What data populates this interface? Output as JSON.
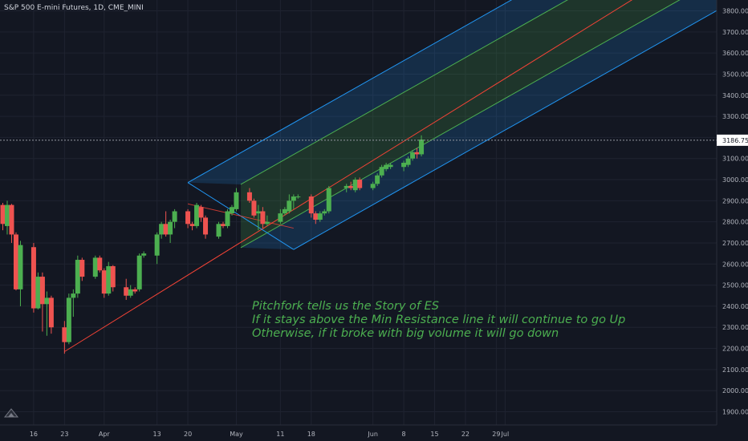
{
  "header": {
    "title": "S&P 500 E-mini Futures, 1D, CME_MINI"
  },
  "annotation": {
    "line1": "Pitchfork tells us the Story of ES",
    "line2": "If it stays above the Min Resistance line it will continue to go Up",
    "line3": "Otherwise, if it broke with big volume it will go down"
  },
  "colors": {
    "background": "#131722",
    "bullish": "#4caf50",
    "bearish": "#ef5350",
    "median_line": "#f44336",
    "inner_band": "#4caf50",
    "outer_band": "#2196f3",
    "axis_text": "#b2b5be"
  },
  "chart_data": {
    "type": "candlestick",
    "symbol": "S&P 500 E-mini Futures",
    "interval": "1D",
    "exchange": "CME_MINI",
    "ylim": [
      1850,
      3850
    ],
    "y_ticks": [
      3800,
      3700,
      3600,
      3500,
      3400,
      3300,
      3200,
      3100,
      3000,
      2900,
      2800,
      2700,
      2600,
      2500,
      2400,
      2300,
      2200,
      2100,
      2000,
      1900
    ],
    "y_tick_labels": [
      "3800.00",
      "3700.00",
      "3600.00",
      "3500.00",
      "3400.00",
      "3300.00",
      "3200.00",
      "3100.00",
      "3000.00",
      "2900.00",
      "2800.00",
      "2700.00",
      "2600.00",
      "2500.00",
      "2400.00",
      "2300.00",
      "2200.00",
      "2100.00",
      "2000.00",
      "1900.00"
    ],
    "x_ticks": [
      {
        "label": "16",
        "date": "2020-03-16"
      },
      {
        "label": "23",
        "date": "2020-03-23"
      },
      {
        "label": "Apr",
        "date": "2020-04-01"
      },
      {
        "label": "13",
        "date": "2020-04-13"
      },
      {
        "label": "20",
        "date": "2020-04-20"
      },
      {
        "label": "May",
        "date": "2020-05-01"
      },
      {
        "label": "11",
        "date": "2020-05-11"
      },
      {
        "label": "18",
        "date": "2020-05-18"
      },
      {
        "label": "Jun",
        "date": "2020-06-01"
      },
      {
        "label": "8",
        "date": "2020-06-08"
      },
      {
        "label": "15",
        "date": "2020-06-15"
      },
      {
        "label": "22",
        "date": "2020-06-22"
      },
      {
        "label": "29",
        "date": "2020-06-29"
      },
      {
        "label": "Jul",
        "date": "2020-07-01"
      }
    ],
    "last_price": 3186.75,
    "last_price_label": "3186.75",
    "candles": [
      {
        "date": "2020-03-09",
        "open": 2880,
        "high": 2890,
        "low": 2760,
        "close": 2790
      },
      {
        "date": "2020-03-10",
        "open": 2780,
        "high": 2900,
        "low": 2740,
        "close": 2880
      },
      {
        "date": "2020-03-11",
        "open": 2880,
        "high": 2885,
        "low": 2700,
        "close": 2740
      },
      {
        "date": "2020-03-12",
        "open": 2740,
        "high": 2750,
        "low": 2475,
        "close": 2480
      },
      {
        "date": "2020-03-13",
        "open": 2480,
        "high": 2710,
        "low": 2400,
        "close": 2690
      },
      {
        "date": "2020-03-16",
        "open": 2680,
        "high": 2700,
        "low": 2370,
        "close": 2390
      },
      {
        "date": "2020-03-17",
        "open": 2390,
        "high": 2560,
        "low": 2385,
        "close": 2540
      },
      {
        "date": "2020-03-18",
        "open": 2540,
        "high": 2560,
        "low": 2280,
        "close": 2410
      },
      {
        "date": "2020-03-19",
        "open": 2410,
        "high": 2470,
        "low": 2260,
        "close": 2440
      },
      {
        "date": "2020-03-20",
        "open": 2440,
        "high": 2450,
        "low": 2270,
        "close": 2300
      },
      {
        "date": "2020-03-23",
        "open": 2300,
        "high": 2330,
        "low": 2175,
        "close": 2230
      },
      {
        "date": "2020-03-24",
        "open": 2230,
        "high": 2460,
        "low": 2220,
        "close": 2440
      },
      {
        "date": "2020-03-25",
        "open": 2440,
        "high": 2480,
        "low": 2350,
        "close": 2460
      },
      {
        "date": "2020-03-26",
        "open": 2460,
        "high": 2640,
        "low": 2440,
        "close": 2620
      },
      {
        "date": "2020-03-27",
        "open": 2620,
        "high": 2630,
        "low": 2520,
        "close": 2540
      },
      {
        "date": "2020-03-30",
        "open": 2540,
        "high": 2640,
        "low": 2530,
        "close": 2630
      },
      {
        "date": "2020-03-31",
        "open": 2630,
        "high": 2640,
        "low": 2560,
        "close": 2570
      },
      {
        "date": "2020-04-01",
        "open": 2570,
        "high": 2580,
        "low": 2440,
        "close": 2460
      },
      {
        "date": "2020-04-02",
        "open": 2460,
        "high": 2610,
        "low": 2450,
        "close": 2590
      },
      {
        "date": "2020-04-03",
        "open": 2590,
        "high": 2595,
        "low": 2470,
        "close": 2490
      },
      {
        "date": "2020-04-06",
        "open": 2490,
        "high": 2530,
        "low": 2430,
        "close": 2450
      },
      {
        "date": "2020-04-07",
        "open": 2450,
        "high": 2500,
        "low": 2440,
        "close": 2480
      },
      {
        "date": "2020-04-08",
        "open": 2480,
        "high": 2490,
        "low": 2460,
        "close": 2470
      },
      {
        "date": "2020-04-09",
        "open": 2480,
        "high": 2650,
        "low": 2470,
        "close": 2640
      },
      {
        "date": "2020-04-10",
        "open": 2640,
        "high": 2660,
        "low": 2630,
        "close": 2650
      },
      {
        "date": "2020-04-13",
        "open": 2640,
        "high": 2750,
        "low": 2600,
        "close": 2740
      },
      {
        "date": "2020-04-14",
        "open": 2740,
        "high": 2800,
        "low": 2720,
        "close": 2790
      },
      {
        "date": "2020-04-15",
        "open": 2790,
        "high": 2850,
        "low": 2730,
        "close": 2740
      },
      {
        "date": "2020-04-16",
        "open": 2740,
        "high": 2810,
        "low": 2700,
        "close": 2800
      },
      {
        "date": "2020-04-17",
        "open": 2800,
        "high": 2860,
        "low": 2770,
        "close": 2850
      },
      {
        "date": "2020-04-20",
        "open": 2850,
        "high": 2860,
        "low": 2770,
        "close": 2790
      },
      {
        "date": "2020-04-21",
        "open": 2790,
        "high": 2800,
        "low": 2760,
        "close": 2780
      },
      {
        "date": "2020-04-22",
        "open": 2780,
        "high": 2890,
        "low": 2770,
        "close": 2880
      },
      {
        "date": "2020-04-23",
        "open": 2870,
        "high": 2880,
        "low": 2800,
        "close": 2820
      },
      {
        "date": "2020-04-24",
        "open": 2820,
        "high": 2830,
        "low": 2720,
        "close": 2740
      },
      {
        "date": "2020-04-27",
        "open": 2730,
        "high": 2800,
        "low": 2720,
        "close": 2790
      },
      {
        "date": "2020-04-28",
        "open": 2790,
        "high": 2800,
        "low": 2770,
        "close": 2780
      },
      {
        "date": "2020-04-29",
        "open": 2780,
        "high": 2860,
        "low": 2770,
        "close": 2850
      },
      {
        "date": "2020-04-30",
        "open": 2840,
        "high": 2880,
        "low": 2830,
        "close": 2870
      },
      {
        "date": "2020-05-01",
        "open": 2860,
        "high": 2960,
        "low": 2850,
        "close": 2940
      },
      {
        "date": "2020-05-04",
        "open": 2940,
        "high": 2960,
        "low": 2890,
        "close": 2900
      },
      {
        "date": "2020-05-05",
        "open": 2900,
        "high": 2910,
        "low": 2820,
        "close": 2830
      },
      {
        "date": "2020-05-06",
        "open": 2840,
        "high": 2880,
        "low": 2760,
        "close": 2850
      },
      {
        "date": "2020-05-07",
        "open": 2850,
        "high": 2870,
        "low": 2770,
        "close": 2790
      },
      {
        "date": "2020-05-08",
        "open": 2790,
        "high": 2830,
        "low": 2780,
        "close": 2800
      },
      {
        "date": "2020-05-11",
        "open": 2800,
        "high": 2860,
        "low": 2790,
        "close": 2840
      },
      {
        "date": "2020-05-12",
        "open": 2840,
        "high": 2870,
        "low": 2830,
        "close": 2860
      },
      {
        "date": "2020-05-13",
        "open": 2850,
        "high": 2930,
        "low": 2840,
        "close": 2900
      },
      {
        "date": "2020-05-14",
        "open": 2900,
        "high": 2930,
        "low": 2860,
        "close": 2920
      },
      {
        "date": "2020-05-15",
        "open": 2920,
        "high": 2930,
        "low": 2910,
        "close": 2920
      },
      {
        "date": "2020-05-18",
        "open": 2920,
        "high": 2930,
        "low": 2820,
        "close": 2840
      },
      {
        "date": "2020-05-19",
        "open": 2840,
        "high": 2850,
        "low": 2790,
        "close": 2810
      },
      {
        "date": "2020-05-20",
        "open": 2810,
        "high": 2850,
        "low": 2800,
        "close": 2840
      },
      {
        "date": "2020-05-21",
        "open": 2840,
        "high": 2860,
        "low": 2830,
        "close": 2850
      },
      {
        "date": "2020-05-22",
        "open": 2850,
        "high": 2970,
        "low": 2840,
        "close": 2960
      },
      {
        "date": "2020-05-26",
        "open": 2960,
        "high": 2980,
        "low": 2940,
        "close": 2970
      },
      {
        "date": "2020-05-27",
        "open": 2970,
        "high": 2990,
        "low": 2950,
        "close": 2960
      },
      {
        "date": "2020-05-28",
        "open": 2950,
        "high": 3010,
        "low": 2940,
        "close": 3000
      },
      {
        "date": "2020-05-29",
        "open": 3000,
        "high": 3010,
        "low": 2950,
        "close": 2960
      },
      {
        "date": "2020-06-01",
        "open": 2960,
        "high": 2990,
        "low": 2950,
        "close": 2980
      },
      {
        "date": "2020-06-02",
        "open": 2980,
        "high": 3030,
        "low": 2970,
        "close": 3020
      },
      {
        "date": "2020-06-03",
        "open": 3020,
        "high": 3070,
        "low": 3010,
        "close": 3060
      },
      {
        "date": "2020-06-04",
        "open": 3050,
        "high": 3080,
        "low": 3040,
        "close": 3070
      },
      {
        "date": "2020-06-05",
        "open": 3060,
        "high": 3080,
        "low": 3050,
        "close": 3070
      },
      {
        "date": "2020-06-08",
        "open": 3060,
        "high": 3090,
        "low": 3040,
        "close": 3080
      },
      {
        "date": "2020-06-09",
        "open": 3070,
        "high": 3110,
        "low": 3060,
        "close": 3100
      },
      {
        "date": "2020-06-10",
        "open": 3100,
        "high": 3140,
        "low": 3090,
        "close": 3130
      },
      {
        "date": "2020-06-11",
        "open": 3130,
        "high": 3150,
        "low": 3100,
        "close": 3120
      },
      {
        "date": "2020-06-12",
        "open": 3120,
        "high": 3210,
        "low": 3110,
        "close": 3190
      }
    ],
    "pitchfork": {
      "anchor_a": {
        "date": "2020-03-23",
        "price": 2185
      },
      "anchor_b": {
        "date": "2020-04-20",
        "price": 2885
      },
      "anchor_c": {
        "date": "2020-05-14",
        "price": 2770
      },
      "median_end_price": 3930,
      "upper_offset": 300,
      "lower_offset": 300,
      "inner_offset": 150
    }
  }
}
